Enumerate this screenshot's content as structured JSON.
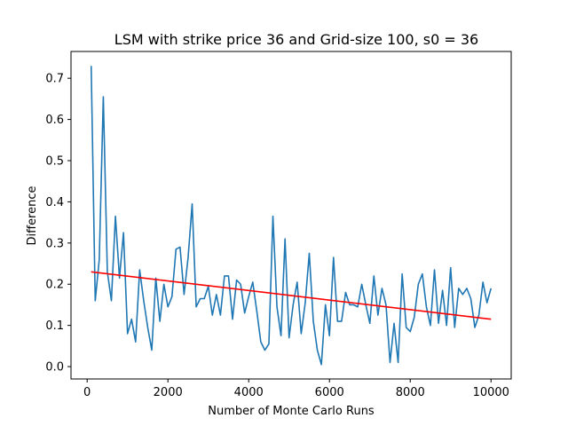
{
  "chart_data": {
    "type": "line",
    "title": "LSM with strike price 36 and Grid-size 100, s0 = 36",
    "xlabel": "Number of Monte Carlo Runs",
    "ylabel": "Difference",
    "xlim": [
      -400,
      10500
    ],
    "ylim": [
      -0.03,
      0.765
    ],
    "xticks": [
      0,
      2000,
      4000,
      6000,
      8000,
      10000
    ],
    "xtick_labels": [
      "0",
      "2000",
      "4000",
      "6000",
      "8000",
      "10000"
    ],
    "yticks": [
      0.0,
      0.1,
      0.2,
      0.3,
      0.4,
      0.5,
      0.6,
      0.7
    ],
    "ytick_labels": [
      "0.0",
      "0.1",
      "0.2",
      "0.3",
      "0.4",
      "0.5",
      "0.6",
      "0.7"
    ],
    "grid": false,
    "series": [
      {
        "kind": "data",
        "color": "#1f77b4",
        "x": [
          100,
          200,
          300,
          400,
          500,
          600,
          700,
          800,
          900,
          1000,
          1100,
          1200,
          1300,
          1400,
          1500,
          1600,
          1700,
          1800,
          1900,
          2000,
          2100,
          2200,
          2300,
          2400,
          2500,
          2600,
          2700,
          2800,
          2900,
          3000,
          3100,
          3200,
          3300,
          3400,
          3500,
          3600,
          3700,
          3800,
          3900,
          4000,
          4100,
          4200,
          4300,
          4400,
          4500,
          4600,
          4700,
          4800,
          4900,
          5000,
          5100,
          5200,
          5300,
          5400,
          5500,
          5600,
          5700,
          5800,
          5900,
          6000,
          6100,
          6200,
          6300,
          6400,
          6500,
          6600,
          6700,
          6800,
          6900,
          7000,
          7100,
          7200,
          7300,
          7400,
          7500,
          7600,
          7700,
          7800,
          7900,
          8000,
          8100,
          8200,
          8300,
          8400,
          8500,
          8600,
          8700,
          8800,
          8900,
          9000,
          9100,
          9200,
          9300,
          9400,
          9500,
          9600,
          9700,
          9800,
          9900,
          10000
        ],
        "y": [
          0.73,
          0.16,
          0.26,
          0.655,
          0.23,
          0.16,
          0.365,
          0.215,
          0.325,
          0.08,
          0.115,
          0.06,
          0.235,
          0.16,
          0.095,
          0.04,
          0.215,
          0.11,
          0.2,
          0.145,
          0.17,
          0.285,
          0.29,
          0.175,
          0.265,
          0.395,
          0.145,
          0.165,
          0.165,
          0.195,
          0.125,
          0.175,
          0.125,
          0.22,
          0.22,
          0.115,
          0.21,
          0.2,
          0.13,
          0.17,
          0.205,
          0.135,
          0.06,
          0.04,
          0.055,
          0.365,
          0.145,
          0.075,
          0.31,
          0.07,
          0.15,
          0.205,
          0.08,
          0.155,
          0.275,
          0.11,
          0.04,
          0.005,
          0.15,
          0.075,
          0.265,
          0.11,
          0.11,
          0.18,
          0.15,
          0.15,
          0.145,
          0.2,
          0.15,
          0.105,
          0.22,
          0.125,
          0.19,
          0.15,
          0.01,
          0.105,
          0.01,
          0.225,
          0.095,
          0.085,
          0.12,
          0.2,
          0.225,
          0.145,
          0.1,
          0.235,
          0.105,
          0.185,
          0.1,
          0.24,
          0.095,
          0.19,
          0.175,
          0.19,
          0.165,
          0.095,
          0.125,
          0.205,
          0.155,
          0.19
        ]
      },
      {
        "kind": "trend",
        "color": "#ff0000",
        "x": [
          100,
          10000
        ],
        "y": [
          0.23,
          0.115
        ]
      }
    ]
  }
}
